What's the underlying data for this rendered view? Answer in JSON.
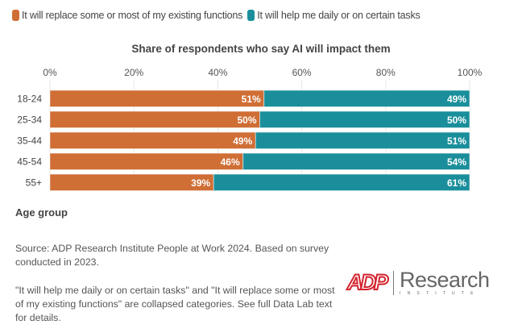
{
  "legend": {
    "items": [
      {
        "label": "It will replace some or most of my existing functions",
        "color": "#cf6e35"
      },
      {
        "label": "It will help me daily or on certain tasks",
        "color": "#1a8f9b"
      }
    ]
  },
  "chart_data": {
    "type": "bar",
    "orientation": "horizontal",
    "stacked": true,
    "title": "Share of respondents who say AI will impact them",
    "xlabel": "",
    "ylabel": "Age group",
    "xlim": [
      0,
      100
    ],
    "x_ticks": [
      "0%",
      "20%",
      "40%",
      "60%",
      "80%",
      "100%"
    ],
    "x_tick_values": [
      0,
      20,
      40,
      60,
      80,
      100
    ],
    "grid": true,
    "legend_position": "top-left",
    "categories": [
      "18-24",
      "25-34",
      "35-44",
      "45-54",
      "55+"
    ],
    "series": [
      {
        "name": "It will replace some or most of my existing functions",
        "color": "#cf6e35",
        "values": [
          51,
          50,
          49,
          46,
          39
        ],
        "labels": [
          "51%",
          "50%",
          "49%",
          "46%",
          "39%"
        ]
      },
      {
        "name": "It will help me daily or on certain tasks",
        "color": "#1a8f9b",
        "values": [
          49,
          50,
          51,
          54,
          61
        ],
        "labels": [
          "49%",
          "50%",
          "51%",
          "54%",
          "61%"
        ]
      }
    ]
  },
  "footer": {
    "source": "Source: ADP Research Institute People at Work 2024. Based on survey conducted in 2023.",
    "note": "\"It will help me daily or on certain tasks\" and \"It will replace some or most of my existing functions\" are collapsed categories. See full Data Lab text for details."
  },
  "logo": {
    "brand": "ADP",
    "name": "Research",
    "sub": "INSTITUTE"
  }
}
